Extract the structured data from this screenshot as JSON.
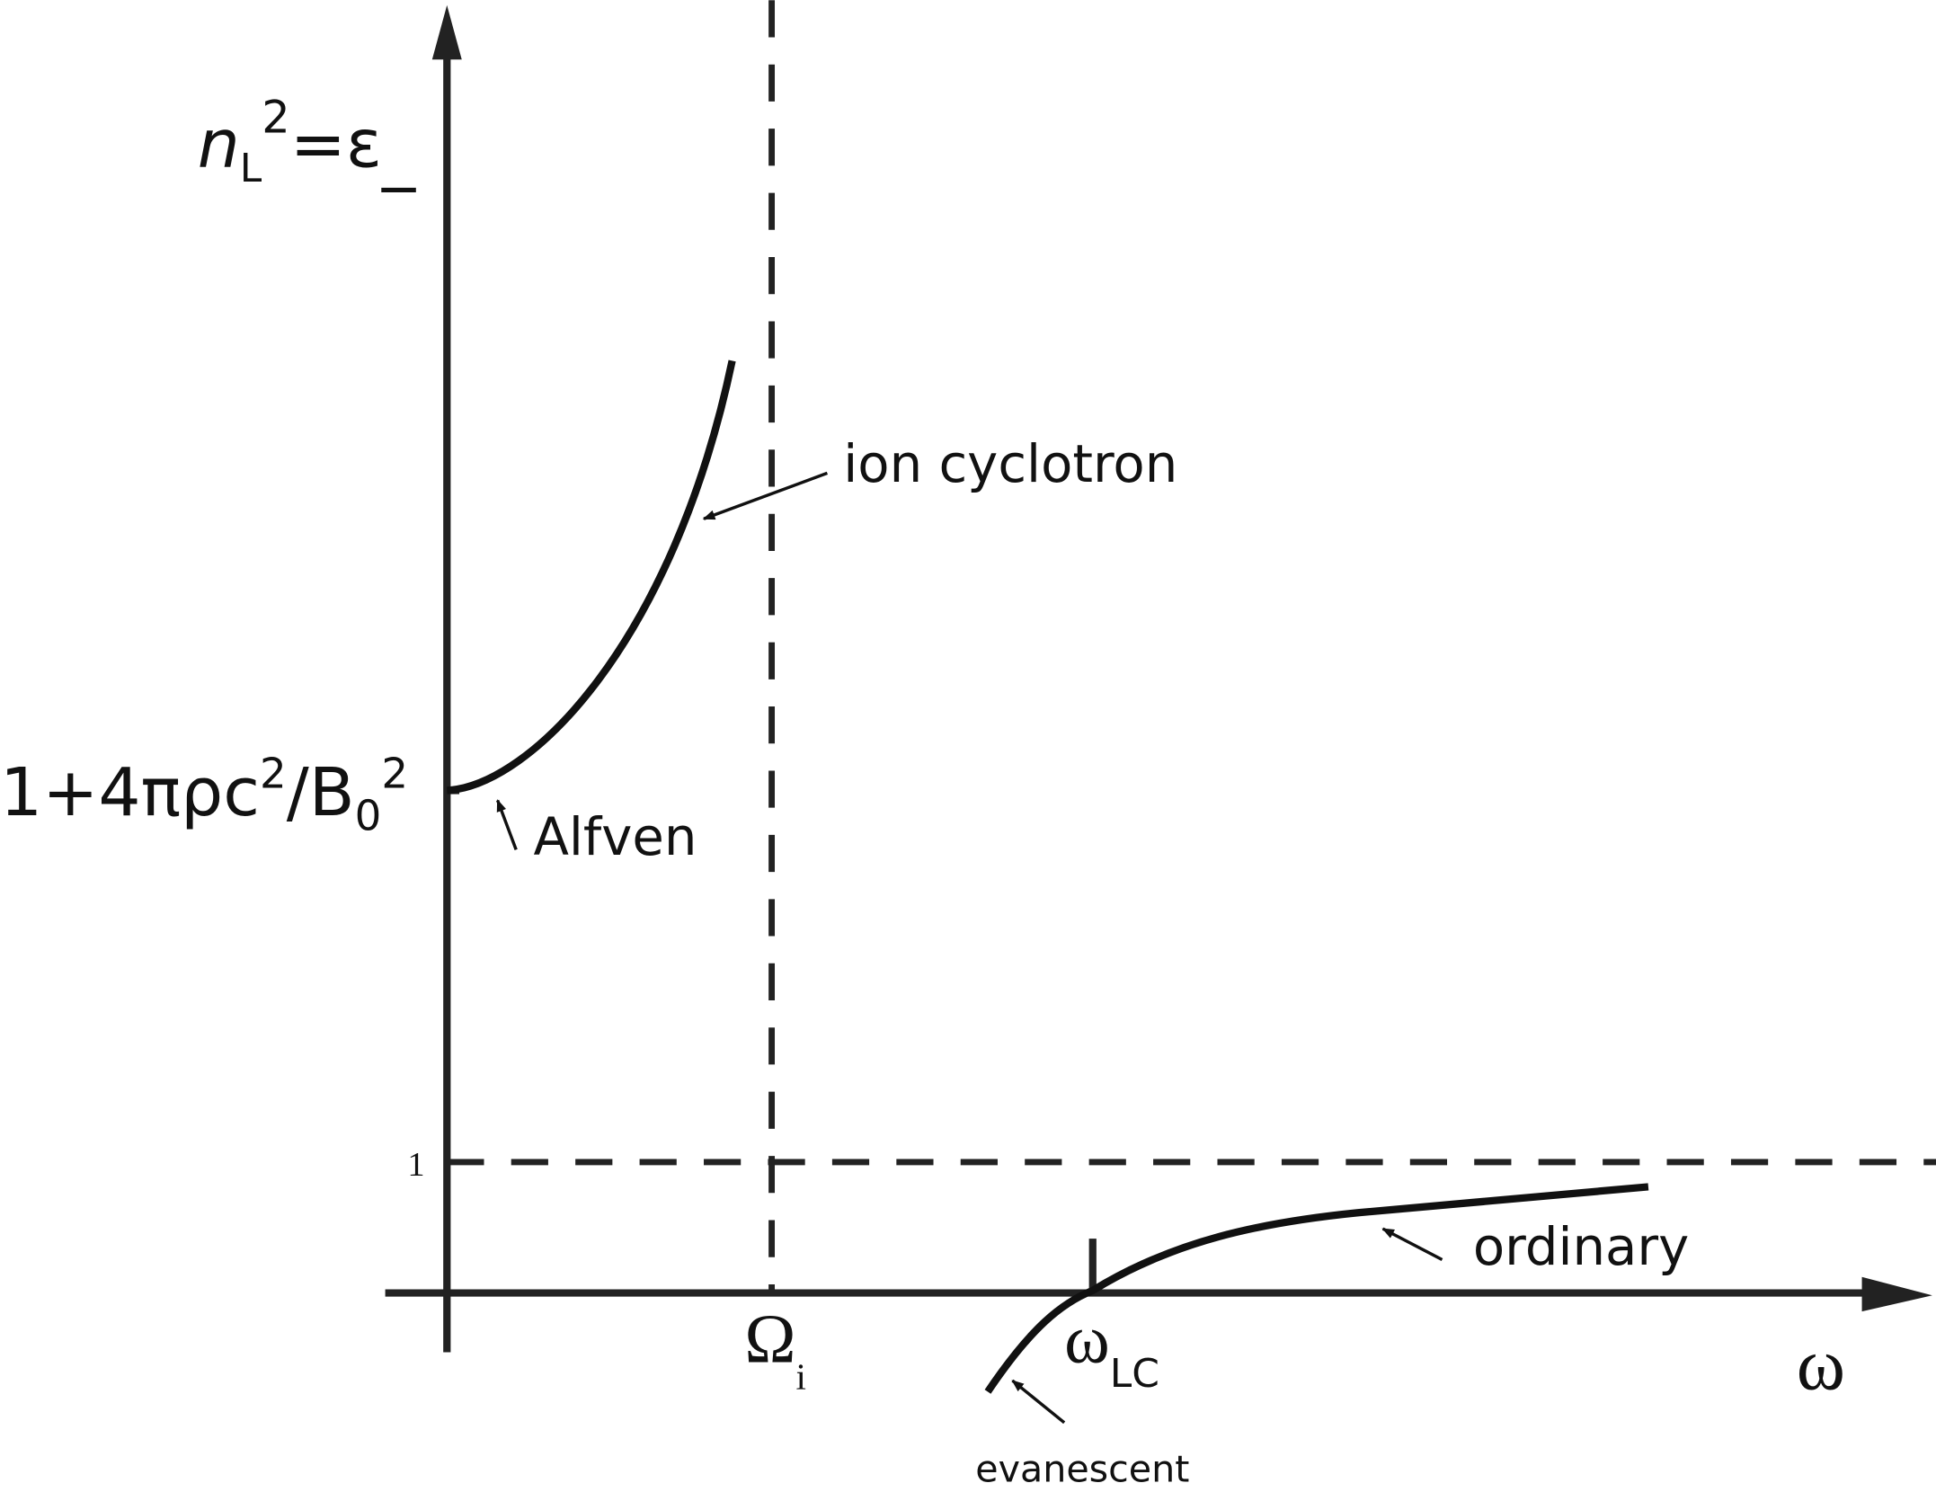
{
  "axes": {
    "y_label": {
      "base": "n",
      "sub": "L",
      "sup": "2",
      "rest": "=ε",
      "rest_sub": "_"
    },
    "x_label": "ω",
    "y_ticks": [
      {
        "base": "1+4πρc",
        "sup": "2",
        "mid": "/B",
        "sub": "0",
        "sup2": "2"
      },
      "1"
    ],
    "x_ticks": [
      {
        "base": "Ω",
        "sub": "i"
      },
      {
        "base": "ω",
        "sub": "LC"
      }
    ]
  },
  "curves": [
    {
      "label": "ion cyclotron"
    },
    {
      "label": "Alfven"
    },
    {
      "label": "ordinary"
    },
    {
      "label": "evanescent"
    }
  ]
}
